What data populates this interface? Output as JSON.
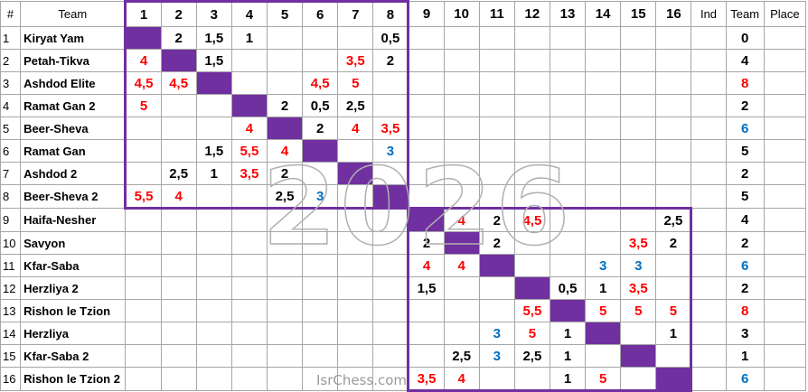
{
  "header": {
    "rank": "#",
    "team": "Team",
    "cols": [
      "1",
      "2",
      "3",
      "4",
      "5",
      "6",
      "7",
      "8",
      "9",
      "10",
      "11",
      "12",
      "13",
      "14",
      "15",
      "16"
    ],
    "ind": "Ind",
    "team_total": "Team",
    "place": "Place"
  },
  "rows": [
    {
      "n": "1",
      "name": "Kiryat Yam",
      "cells": [
        "",
        "2",
        "1,5",
        "1",
        "",
        "",
        "",
        "0,5",
        "",
        "",
        "",
        "",
        "",
        "",
        "",
        ""
      ],
      "colors": [
        "",
        "k",
        "k",
        "k",
        "",
        "",
        "",
        "k",
        "",
        "",
        "",
        "",
        "",
        "",
        "",
        ""
      ],
      "ind": "",
      "team": "0",
      "team_color": "k",
      "place": ""
    },
    {
      "n": "2",
      "name": "Petah-Tikva",
      "cells": [
        "4",
        "",
        "1,5",
        "",
        "",
        "",
        "3,5",
        "2",
        "",
        "",
        "",
        "",
        "",
        "",
        "",
        ""
      ],
      "colors": [
        "r",
        "",
        "k",
        "",
        "",
        "",
        "r",
        "k",
        "",
        "",
        "",
        "",
        "",
        "",
        "",
        ""
      ],
      "ind": "",
      "team": "4",
      "team_color": "k",
      "place": ""
    },
    {
      "n": "3",
      "name": "Ashdod Elite",
      "cells": [
        "4,5",
        "4,5",
        "",
        "",
        "",
        "4,5",
        "5",
        "",
        "",
        "",
        "",
        "",
        "",
        "",
        "",
        ""
      ],
      "colors": [
        "r",
        "r",
        "",
        "",
        "",
        "r",
        "r",
        "",
        "",
        "",
        "",
        "",
        "",
        "",
        "",
        ""
      ],
      "ind": "",
      "team": "8",
      "team_color": "r",
      "place": ""
    },
    {
      "n": "4",
      "name": "Ramat Gan 2",
      "cells": [
        "5",
        "",
        "",
        "",
        "2",
        "0,5",
        "2,5",
        "",
        "",
        "",
        "",
        "",
        "",
        "",
        "",
        ""
      ],
      "colors": [
        "r",
        "",
        "",
        "",
        "k",
        "k",
        "k",
        "",
        "",
        "",
        "",
        "",
        "",
        "",
        "",
        ""
      ],
      "ind": "",
      "team": "2",
      "team_color": "k",
      "place": ""
    },
    {
      "n": "5",
      "name": "Beer-Sheva",
      "cells": [
        "",
        "",
        "",
        "4",
        "",
        "2",
        "4",
        "3,5",
        "",
        "",
        "",
        "",
        "",
        "",
        "",
        ""
      ],
      "colors": [
        "",
        "",
        "",
        "r",
        "",
        "k",
        "r",
        "r",
        "",
        "",
        "",
        "",
        "",
        "",
        "",
        ""
      ],
      "ind": "",
      "team": "6",
      "team_color": "b",
      "place": ""
    },
    {
      "n": "6",
      "name": "Ramat Gan",
      "cells": [
        "",
        "",
        "1,5",
        "5,5",
        "4",
        "",
        "",
        "3",
        "",
        "",
        "",
        "",
        "",
        "",
        "",
        ""
      ],
      "colors": [
        "",
        "",
        "k",
        "r",
        "r",
        "",
        "",
        "b",
        "",
        "",
        "",
        "",
        "",
        "",
        "",
        ""
      ],
      "ind": "",
      "team": "5",
      "team_color": "k",
      "place": ""
    },
    {
      "n": "7",
      "name": "Ashdod 2",
      "cells": [
        "",
        "2,5",
        "1",
        "3,5",
        "2",
        "",
        "",
        "",
        "",
        "",
        "",
        "",
        "",
        "",
        "",
        ""
      ],
      "colors": [
        "",
        "k",
        "k",
        "r",
        "k",
        "",
        "",
        "",
        "",
        "",
        "",
        "",
        "",
        "",
        "",
        ""
      ],
      "ind": "",
      "team": "2",
      "team_color": "k",
      "place": ""
    },
    {
      "n": "8",
      "name": "Beer-Sheva 2",
      "cells": [
        "5,5",
        "4",
        "",
        "",
        "2,5",
        "3",
        "",
        "",
        "",
        "",
        "",
        "",
        "",
        "",
        "",
        ""
      ],
      "colors": [
        "r",
        "r",
        "",
        "",
        "k",
        "b",
        "",
        "",
        "",
        "",
        "",
        "",
        "",
        "",
        "",
        ""
      ],
      "ind": "",
      "team": "5",
      "team_color": "k",
      "place": ""
    },
    {
      "n": "9",
      "name": "Haifa-Nesher",
      "cells": [
        "",
        "",
        "",
        "",
        "",
        "",
        "",
        "",
        "",
        "4",
        "2",
        "4,5",
        "",
        "",
        "",
        "2,5"
      ],
      "colors": [
        "",
        "",
        "",
        "",
        "",
        "",
        "",
        "",
        "",
        "r",
        "k",
        "r",
        "",
        "",
        "",
        "k"
      ],
      "ind": "",
      "team": "4",
      "team_color": "k",
      "place": ""
    },
    {
      "n": "10",
      "name": "Savyon",
      "cells": [
        "",
        "",
        "",
        "",
        "",
        "",
        "",
        "",
        "2",
        "",
        "2",
        "",
        "",
        "",
        "3,5",
        "2"
      ],
      "colors": [
        "",
        "",
        "",
        "",
        "",
        "",
        "",
        "",
        "k",
        "",
        "k",
        "",
        "",
        "",
        "r",
        "k"
      ],
      "ind": "",
      "team": "2",
      "team_color": "k",
      "place": ""
    },
    {
      "n": "11",
      "name": "Kfar-Saba",
      "cells": [
        "",
        "",
        "",
        "",
        "",
        "",
        "",
        "",
        "4",
        "4",
        "",
        "",
        "",
        "3",
        "3",
        ""
      ],
      "colors": [
        "",
        "",
        "",
        "",
        "",
        "",
        "",
        "",
        "r",
        "r",
        "",
        "",
        "",
        "b",
        "b",
        ""
      ],
      "ind": "",
      "team": "6",
      "team_color": "b",
      "place": ""
    },
    {
      "n": "12",
      "name": "Herzliya 2",
      "cells": [
        "",
        "",
        "",
        "",
        "",
        "",
        "",
        "",
        "1,5",
        "",
        "",
        "",
        "0,5",
        "1",
        "3,5",
        ""
      ],
      "colors": [
        "",
        "",
        "",
        "",
        "",
        "",
        "",
        "",
        "k",
        "",
        "",
        "",
        "k",
        "k",
        "r",
        ""
      ],
      "ind": "",
      "team": "2",
      "team_color": "k",
      "place": ""
    },
    {
      "n": "13",
      "name": "Rishon le Tzion",
      "cells": [
        "",
        "",
        "",
        "",
        "",
        "",
        "",
        "",
        "",
        "",
        "",
        "5,5",
        "",
        "5",
        "5",
        "5"
      ],
      "colors": [
        "",
        "",
        "",
        "",
        "",
        "",
        "",
        "",
        "",
        "",
        "",
        "r",
        "",
        "r",
        "r",
        "r"
      ],
      "ind": "",
      "team": "8",
      "team_color": "r",
      "place": ""
    },
    {
      "n": "14",
      "name": "Herzliya",
      "cells": [
        "",
        "",
        "",
        "",
        "",
        "",
        "",
        "",
        "",
        "",
        "3",
        "5",
        "1",
        "",
        "",
        "1"
      ],
      "colors": [
        "",
        "",
        "",
        "",
        "",
        "",
        "",
        "",
        "",
        "",
        "b",
        "r",
        "k",
        "",
        "",
        "k"
      ],
      "ind": "",
      "team": "3",
      "team_color": "k",
      "place": ""
    },
    {
      "n": "15",
      "name": "Kfar-Saba 2",
      "cells": [
        "",
        "",
        "",
        "",
        "",
        "",
        "",
        "",
        "",
        "2,5",
        "3",
        "2,5",
        "1",
        "",
        "",
        ""
      ],
      "colors": [
        "",
        "",
        "",
        "",
        "",
        "",
        "",
        "",
        "",
        "k",
        "b",
        "k",
        "k",
        "",
        "",
        ""
      ],
      "ind": "",
      "team": "1",
      "team_color": "k",
      "place": ""
    },
    {
      "n": "16",
      "name": "Rishon le Tzion 2",
      "cells": [
        "",
        "",
        "",
        "",
        "",
        "",
        "",
        "",
        "3,5",
        "4",
        "",
        "",
        "1",
        "5",
        "",
        ""
      ],
      "colors": [
        "",
        "",
        "",
        "",
        "",
        "",
        "",
        "",
        "r",
        "r",
        "",
        "",
        "k",
        "r",
        "",
        ""
      ],
      "ind": "",
      "team": "6",
      "team_color": "b",
      "place": ""
    }
  ],
  "watermark": "2026",
  "site_mark": "IsrChess.com",
  "colors": {
    "diagonal": "#7030a0",
    "red": "#ff0000",
    "blue": "#0070c0",
    "black": "#000000",
    "group_border": "#7030a0"
  }
}
